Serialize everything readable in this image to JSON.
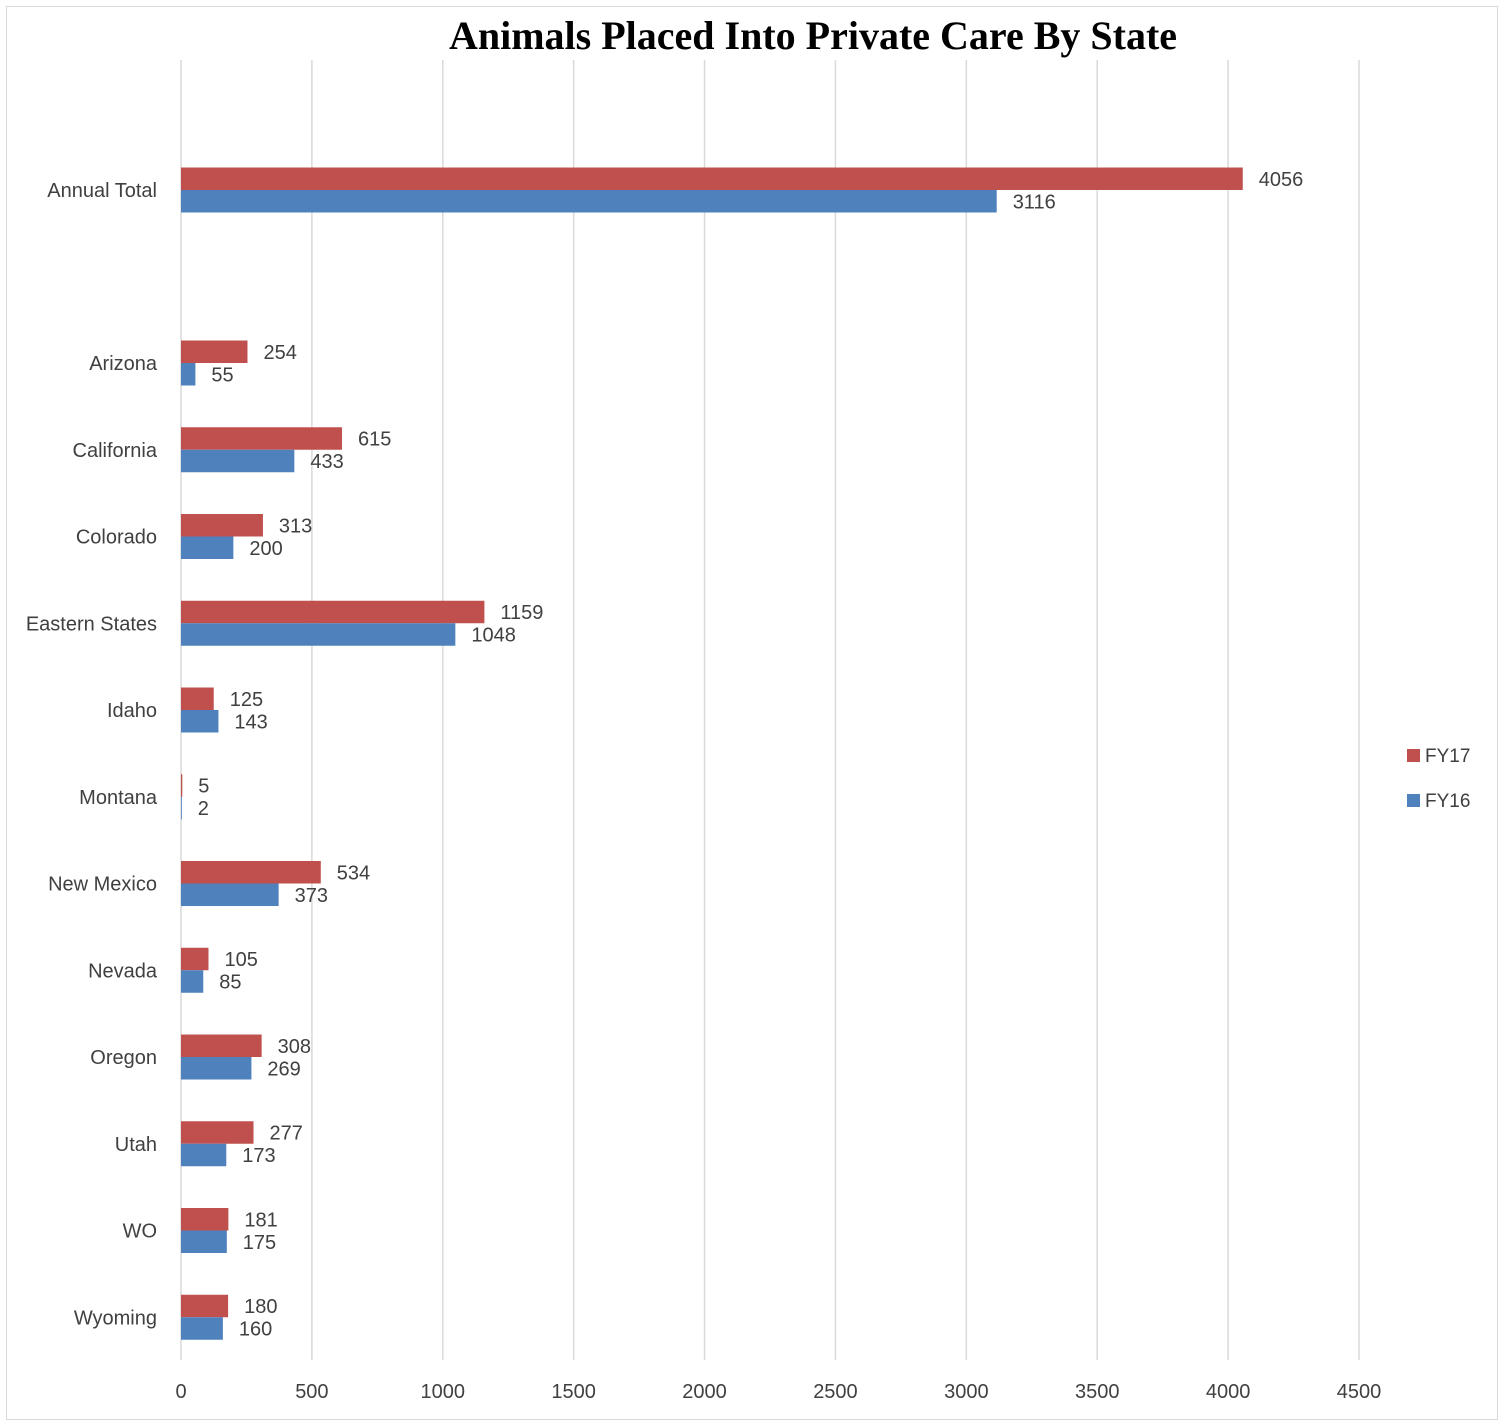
{
  "chart_data": {
    "type": "bar",
    "orientation": "horizontal",
    "title": "Animals Placed Into Private Care By State",
    "categories": [
      "Annual Total",
      "Arizona",
      "California",
      "Colorado",
      "Eastern States",
      "Idaho",
      "Montana",
      "New Mexico",
      "Nevada",
      "Oregon",
      "Utah",
      "WO",
      "Wyoming"
    ],
    "series": [
      {
        "name": "FY17",
        "color": "#c0504d",
        "values": [
          4056,
          254,
          615,
          313,
          1159,
          125,
          5,
          534,
          105,
          308,
          277,
          181,
          180
        ]
      },
      {
        "name": "FY16",
        "color": "#4f81bd",
        "values": [
          3116,
          55,
          433,
          200,
          1048,
          143,
          2,
          373,
          85,
          269,
          173,
          175,
          160
        ]
      }
    ],
    "xlim": [
      0,
      4500
    ],
    "xticks": [
      0,
      500,
      1000,
      1500,
      2000,
      2500,
      3000,
      3500,
      4000,
      4500
    ],
    "grid": "vertical",
    "legend": "right",
    "xlabel": "",
    "ylabel": ""
  }
}
